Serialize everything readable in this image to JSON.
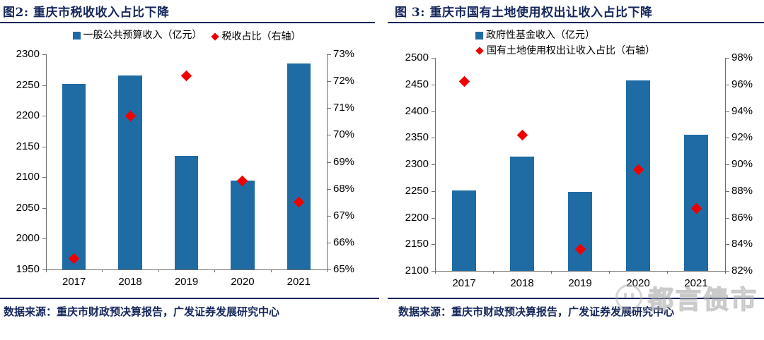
{
  "colors": {
    "bar": "#1F6CA5",
    "marker": "#EE0000",
    "navy": "#15265B",
    "axis_line": "#6E6E6E"
  },
  "watermark": {
    "text": "都言债市",
    "icon": "wechat-smiley-icon"
  },
  "chart_data": [
    {
      "type": "bar",
      "title": "图2: 重庆市税收收入占比下降",
      "categories": [
        "2017",
        "2018",
        "2019",
        "2020",
        "2021"
      ],
      "series": [
        {
          "name": "一般公共预算收入（亿元）",
          "type": "bar",
          "axis": "left",
          "values": [
            2252,
            2266,
            2135,
            2095,
            2285
          ]
        },
        {
          "name": "税收占比（右轴）",
          "type": "scatter",
          "axis": "right",
          "values": [
            65.4,
            70.7,
            72.2,
            68.3,
            67.5
          ]
        }
      ],
      "left_axis": {
        "min": 1950,
        "max": 2300,
        "step": 50,
        "suffix": ""
      },
      "right_axis": {
        "min": 65,
        "max": 73,
        "step": 1,
        "suffix": "%"
      },
      "grid": false,
      "legend_layout": "row",
      "legend_position": "top-center",
      "source": "数据来源：重庆市财政预决算报告，广发证券发展研究中心"
    },
    {
      "type": "bar",
      "title": "图 3: 重庆市国有土地使用权出让收入占比下降",
      "categories": [
        "2017",
        "2018",
        "2019",
        "2020",
        "2021"
      ],
      "series": [
        {
          "name": "政府性基金收入（亿元）",
          "type": "bar",
          "axis": "left",
          "values": [
            2251,
            2315,
            2248,
            2458,
            2356
          ]
        },
        {
          "name": "国有土地使用权出让收入占比（右轴）",
          "type": "scatter",
          "axis": "right",
          "values": [
            96.2,
            92.2,
            83.6,
            89.6,
            86.7
          ]
        }
      ],
      "left_axis": {
        "min": 2100,
        "max": 2500,
        "step": 50,
        "suffix": ""
      },
      "right_axis": {
        "min": 82,
        "max": 98,
        "step": 2,
        "suffix": "%"
      },
      "grid": false,
      "legend_layout": "stack",
      "legend_position": "top-left",
      "source": "数据来源：重庆市财政预决算报告，广发证券发展研究中心"
    }
  ]
}
